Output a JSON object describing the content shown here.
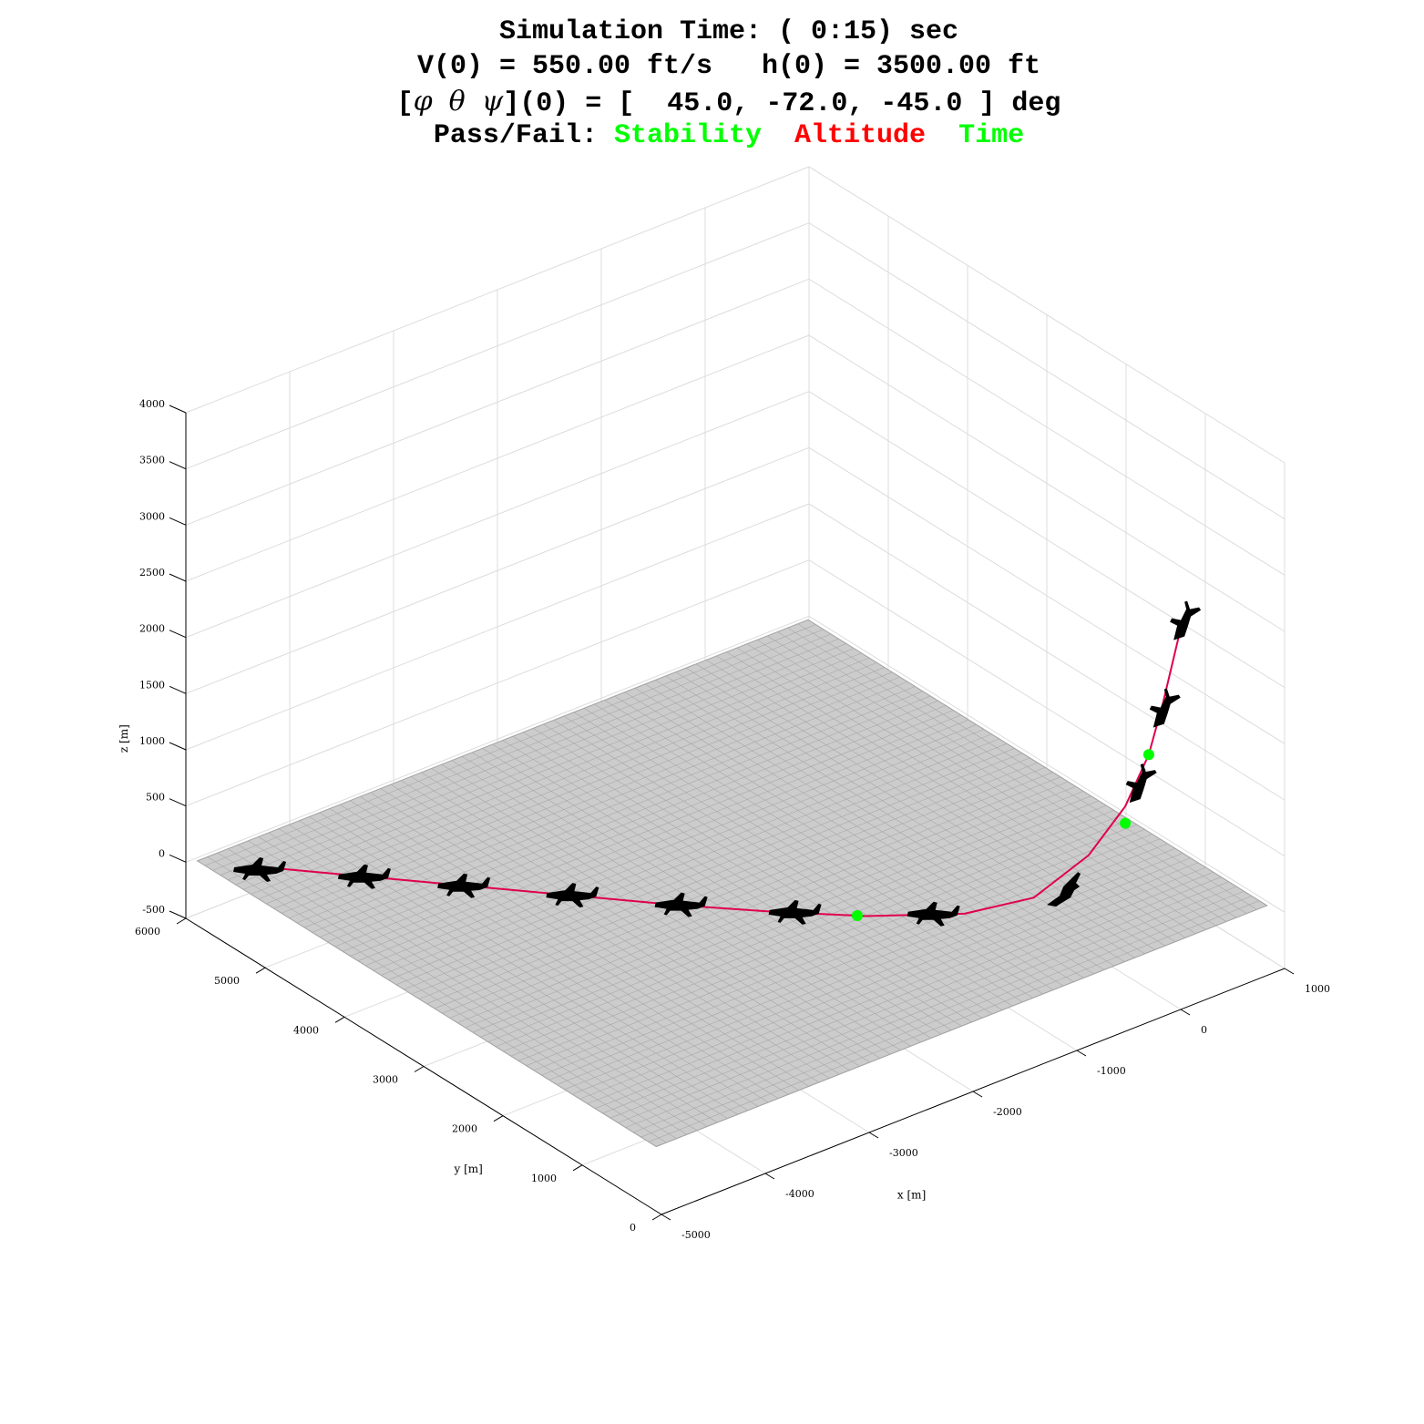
{
  "title": {
    "line1": "Simulation Time: ( 0:15) sec",
    "line2": "V(0) = 550.00 ft/s   h(0) = 3500.00 ft",
    "line3_prefix": "[",
    "phi": "φ",
    "theta": "θ",
    "psi": "ψ",
    "line3_suffix": "](0) = [  45.0, -72.0, -45.0 ] deg",
    "line4_prefix": "Pass/Fail: ",
    "status": [
      {
        "label": "Stability",
        "color": "#00ff00"
      },
      {
        "label": "Altitude",
        "color": "#ff0000"
      },
      {
        "label": "Time",
        "color": "#00ff00"
      }
    ]
  },
  "chart_data": {
    "type": "line3d",
    "xlabel": "x [m]",
    "ylabel": "y [m]",
    "zlabel": "z [m]",
    "xlim": [
      -5000,
      1000
    ],
    "ylim": [
      0,
      6000
    ],
    "zlim": [
      -500,
      4000
    ],
    "xticks": [
      "-5000",
      "-4000",
      "-3000",
      "-2000",
      "-1000",
      "0",
      "1000"
    ],
    "yticks": [
      "0",
      "1000",
      "2000",
      "3000",
      "4000",
      "5000",
      "6000"
    ],
    "zticks": [
      "-500",
      "0",
      "500",
      "1000",
      "1500",
      "2000",
      "2500",
      "3000",
      "3500",
      "4000"
    ],
    "ground_plane_z": 0,
    "ground_color": "#cccccc",
    "trajectory_color": "#e0004e",
    "marker_color": "#00ff00",
    "trajectory": [
      {
        "x": 400,
        "y": 500,
        "z": 2600
      },
      {
        "x": 250,
        "y": 550,
        "z": 1900
      },
      {
        "x": 150,
        "y": 600,
        "z": 1450
      },
      {
        "x": 0,
        "y": 700,
        "z": 1000
      },
      {
        "x": -200,
        "y": 900,
        "z": 550
      },
      {
        "x": -500,
        "y": 1200,
        "z": 150
      },
      {
        "x": -900,
        "y": 1550,
        "z": 0
      },
      {
        "x": -1500,
        "y": 2000,
        "z": 0
      },
      {
        "x": -2000,
        "y": 2500,
        "z": 0
      },
      {
        "x": -2500,
        "y": 3050,
        "z": 0
      },
      {
        "x": -3000,
        "y": 3650,
        "z": 0
      },
      {
        "x": -3500,
        "y": 4250,
        "z": 0
      },
      {
        "x": -4000,
        "y": 4850,
        "z": 0
      },
      {
        "x": -4500,
        "y": 5450,
        "z": 0
      }
    ],
    "aircraft": [
      {
        "x": 400,
        "y": 500,
        "z": 2600,
        "attitude": "climbing"
      },
      {
        "x": 250,
        "y": 560,
        "z": 1850,
        "attitude": "climbing"
      },
      {
        "x": 90,
        "y": 650,
        "z": 1200,
        "attitude": "climbing"
      },
      {
        "x": -350,
        "y": 1000,
        "z": 250,
        "attitude": "banking"
      },
      {
        "x": -1100,
        "y": 1700,
        "z": 0,
        "attitude": "level"
      },
      {
        "x": -1900,
        "y": 2400,
        "z": 0,
        "attitude": "level"
      },
      {
        "x": -2500,
        "y": 3050,
        "z": 0,
        "attitude": "level"
      },
      {
        "x": -3050,
        "y": 3700,
        "z": 0,
        "attitude": "level"
      },
      {
        "x": -3600,
        "y": 4350,
        "z": 0,
        "attitude": "level"
      },
      {
        "x": -4100,
        "y": 4950,
        "z": 0,
        "attitude": "level"
      },
      {
        "x": -4650,
        "y": 5550,
        "z": 0,
        "attitude": "level"
      }
    ],
    "markers": [
      {
        "x": 150,
        "y": 600,
        "z": 1450
      },
      {
        "x": 0,
        "y": 700,
        "z": 850
      },
      {
        "x": -1550,
        "y": 2050,
        "z": 0
      }
    ]
  }
}
